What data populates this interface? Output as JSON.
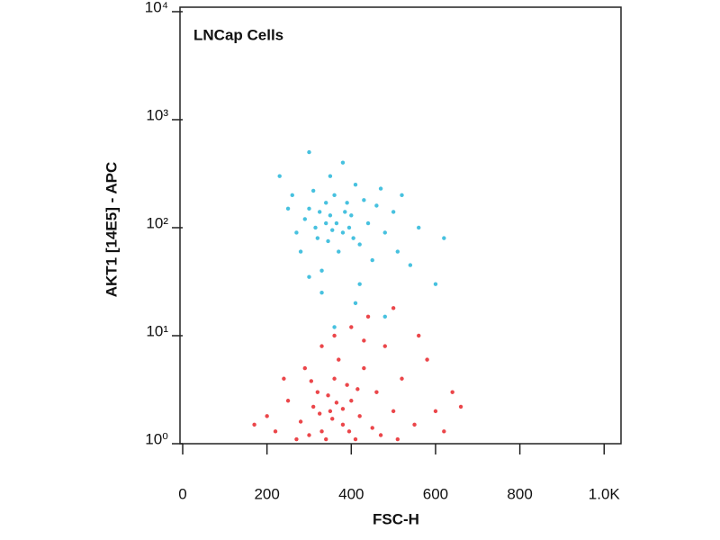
{
  "chart_data": {
    "type": "scatter",
    "title": "LNCap Cells",
    "x_label": "FSC-H",
    "y_label": "AKT1 [14E5] - APC",
    "xlim": [
      0,
      1040
    ],
    "ylim": [
      1,
      11000
    ],
    "log_y": true,
    "xticks": [
      0,
      200,
      400,
      600,
      800,
      {
        "value": 1000,
        "label": "1.0K"
      }
    ],
    "yticks": [
      {
        "value": 1,
        "label": "10⁰"
      },
      {
        "value": 10,
        "label": "10¹"
      },
      {
        "value": 100,
        "label": "10²"
      },
      {
        "value": 1000,
        "label": "10³"
      },
      {
        "value": 10000,
        "label": "10⁴"
      }
    ],
    "series": [
      {
        "color": "#27b6d9",
        "x": [
          300,
          340,
          380,
          360,
          320,
          400,
          420,
          280,
          350,
          390,
          310,
          440,
          460,
          330,
          370,
          410,
          290,
          260,
          480,
          500,
          350,
          380,
          300,
          420,
          450,
          510,
          270,
          340,
          365,
          395,
          325,
          345,
          385,
          405,
          315,
          355,
          430,
          470,
          250,
          520,
          300,
          410,
          480,
          360,
          330,
          560,
          540,
          600,
          620,
          230
        ],
        "y": [
          150,
          110,
          90,
          200,
          80,
          130,
          70,
          60,
          130,
          170,
          220,
          110,
          160,
          40,
          60,
          250,
          120,
          200,
          90,
          140,
          300,
          400,
          35,
          30,
          50,
          60,
          90,
          170,
          110,
          100,
          140,
          75,
          140,
          80,
          100,
          95,
          180,
          230,
          150,
          200,
          500,
          20,
          15,
          12,
          25,
          100,
          45,
          30,
          80,
          300
        ]
      },
      {
        "color": "#e8262a",
        "x": [
          350,
          380,
          320,
          400,
          300,
          420,
          360,
          340,
          390,
          310,
          430,
          450,
          280,
          370,
          330,
          410,
          460,
          500,
          270,
          250,
          480,
          520,
          550,
          600,
          640,
          220,
          200,
          360,
          400,
          440,
          330,
          290,
          380,
          355,
          345,
          395,
          365,
          325,
          415,
          305,
          470,
          510,
          580,
          620,
          660,
          170,
          240,
          560,
          500,
          430
        ],
        "y": [
          2,
          1.5,
          3,
          2.5,
          1.2,
          1.8,
          4,
          1.1,
          3.5,
          2.2,
          5,
          1.4,
          1.6,
          6,
          1.3,
          1.1,
          3,
          2,
          1.1,
          2.5,
          8,
          4,
          1.5,
          2,
          3,
          1.3,
          1.8,
          10,
          12,
          15,
          8,
          5,
          2.1,
          1.7,
          2.8,
          1.3,
          2.4,
          1.9,
          3.2,
          3.8,
          1.2,
          1.1,
          6,
          1.3,
          2.2,
          1.5,
          4,
          10,
          18,
          9
        ]
      }
    ]
  }
}
